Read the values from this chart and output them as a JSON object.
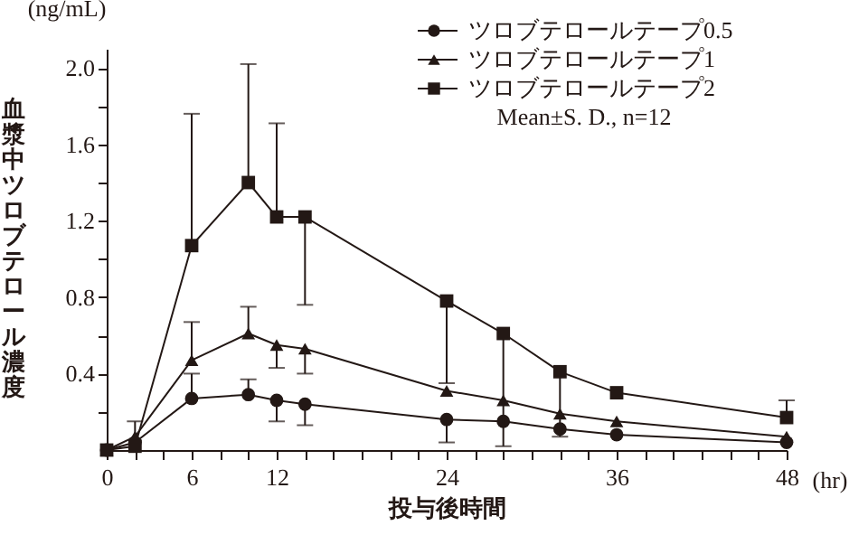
{
  "chart_data": {
    "type": "line",
    "xlabel": "投与後時間",
    "ylabel": "血漿中ツロブテロール濃度",
    "annotations": [
      "(ng/mL)",
      "(hr)",
      "Mean±S. D.,  n=12"
    ],
    "x": [
      0,
      2,
      6,
      10,
      12,
      14,
      24,
      28,
      32,
      36,
      48
    ],
    "series": [
      {
        "name": "ツロブテロールテープ0.5",
        "color": "#231815",
        "marker": "circle",
        "values": [
          0.0,
          0.04,
          0.27,
          0.29,
          0.26,
          0.24,
          0.16,
          0.15,
          0.11,
          0.08,
          0.04
        ],
        "errors": [
          null,
          null,
          [
            0.27,
            0.4
          ],
          [
            0.29,
            0.37
          ],
          [
            0.15,
            0.26
          ],
          [
            0.13,
            0.24
          ],
          [
            0.04,
            0.16
          ],
          null,
          null,
          null,
          null
        ]
      },
      {
        "name": "ツロブテロールテープ1",
        "color": "#231815",
        "marker": "triangle",
        "values": [
          0.0,
          0.07,
          0.47,
          0.61,
          0.55,
          0.53,
          0.31,
          0.26,
          0.19,
          0.15,
          0.07
        ],
        "errors": [
          null,
          [
            0.07,
            0.15
          ],
          [
            0.47,
            0.67
          ],
          [
            0.61,
            0.75
          ],
          [
            0.43,
            0.55
          ],
          [
            0.4,
            0.53
          ],
          null,
          null,
          null,
          null,
          null
        ]
      },
      {
        "name": "ツロブテロールテープ2",
        "color": "#231815",
        "marker": "square",
        "values": [
          0.0,
          0.02,
          1.07,
          1.4,
          1.22,
          1.22,
          0.78,
          0.61,
          0.41,
          0.3,
          0.17
        ],
        "errors": [
          null,
          null,
          [
            1.07,
            1.76
          ],
          [
            1.4,
            2.02
          ],
          [
            1.22,
            1.71
          ],
          [
            0.76,
            1.22
          ],
          [
            0.35,
            0.78
          ],
          [
            0.02,
            0.61
          ],
          [
            0.07,
            0.41
          ],
          null,
          [
            0.17,
            0.26
          ]
        ]
      }
    ],
    "xlim": [
      0,
      48
    ],
    "xticks": [
      0,
      {
        "value": 2,
        "label": null
      },
      {
        "value": 4,
        "label": null
      },
      6,
      {
        "value": 8,
        "label": null
      },
      {
        "value": 10,
        "label": null
      },
      12,
      {
        "value": 14,
        "label": null
      },
      {
        "value": 16,
        "label": null
      },
      {
        "value": 18,
        "label": null
      },
      {
        "value": 20,
        "label": null
      },
      {
        "value": 22,
        "label": null
      },
      24,
      {
        "value": 26,
        "label": null
      },
      {
        "value": 28,
        "label": null
      },
      {
        "value": 30,
        "label": null
      },
      {
        "value": 32,
        "label": null
      },
      {
        "value": 34,
        "label": null
      },
      36,
      {
        "value": 38,
        "label": null
      },
      {
        "value": 40,
        "label": null
      },
      {
        "value": 42,
        "label": null
      },
      {
        "value": 44,
        "label": null
      },
      {
        "value": 46,
        "label": null
      },
      48
    ],
    "ylim": [
      0,
      2.1
    ],
    "yticks": [
      {
        "value": 0.2,
        "label": null
      },
      0.4,
      {
        "value": 0.6,
        "label": null
      },
      0.8,
      {
        "value": 1.0,
        "label": null
      },
      1.2,
      {
        "value": 1.4,
        "label": null
      },
      1.6,
      {
        "value": 1.8,
        "label": null
      },
      {
        "value": 2.0,
        "label": "2.0"
      }
    ],
    "grid": false,
    "legend": "top right",
    "line_style": "solid"
  }
}
